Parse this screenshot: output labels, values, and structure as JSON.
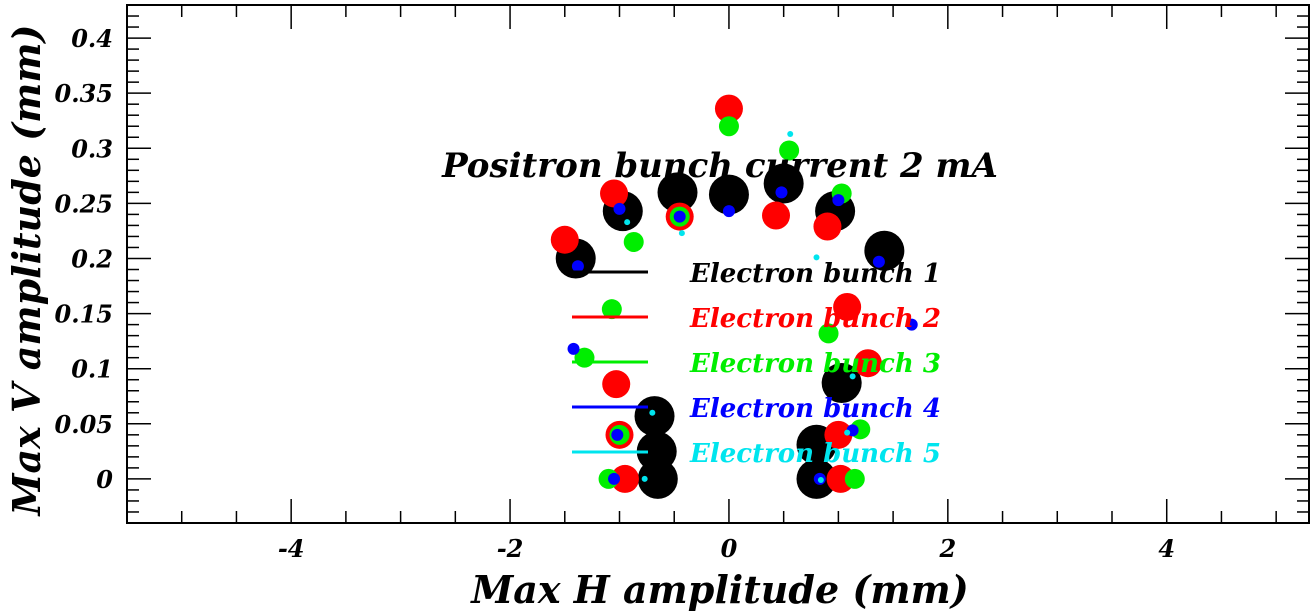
{
  "chart_data": {
    "type": "scatter",
    "title": "",
    "annotation": "Positron bunch current  2 mA",
    "xlabel": "Max H amplitude (mm)",
    "ylabel": "Max V amplitude (mm)",
    "xlim": [
      -5.5,
      5.3
    ],
    "ylim": [
      -0.04,
      0.43
    ],
    "x_ticks": [
      -4,
      -2,
      0,
      2,
      4
    ],
    "x_tick_labels": [
      "-4",
      "-2",
      "0",
      "2",
      "4"
    ],
    "y_ticks": [
      0,
      0.05,
      0.1,
      0.15,
      0.2,
      0.25,
      0.3,
      0.35,
      0.4
    ],
    "y_tick_labels": [
      "0",
      "0.05",
      "0.1",
      "0.15",
      "0.2",
      "0.25",
      "0.3",
      "0.35",
      "0.4"
    ],
    "grid": false,
    "legend_placement": "center",
    "series": [
      {
        "name": "Electron bunch 1",
        "color": "#000000",
        "points": [
          {
            "x": -1.4,
            "y": 0.2
          },
          {
            "x": -0.97,
            "y": 0.243
          },
          {
            "x": -0.47,
            "y": 0.26
          },
          {
            "x": 0.0,
            "y": 0.258
          },
          {
            "x": 0.5,
            "y": 0.268
          },
          {
            "x": 0.97,
            "y": 0.243
          },
          {
            "x": 1.42,
            "y": 0.207
          },
          {
            "x": 1.03,
            "y": 0.087
          },
          {
            "x": -0.68,
            "y": 0.057
          },
          {
            "x": -0.66,
            "y": 0.025
          },
          {
            "x": 0.8,
            "y": 0.031
          },
          {
            "x": -0.65,
            "y": 0.0
          },
          {
            "x": 0.8,
            "y": 0.0
          }
        ]
      },
      {
        "name": "Electron bunch 2",
        "color": "#ff0000",
        "points": [
          {
            "x": 0.0,
            "y": 0.336
          },
          {
            "x": -1.05,
            "y": 0.259
          },
          {
            "x": -1.5,
            "y": 0.217
          },
          {
            "x": -0.45,
            "y": 0.238
          },
          {
            "x": 0.43,
            "y": 0.239
          },
          {
            "x": 0.9,
            "y": 0.229
          },
          {
            "x": 1.08,
            "y": 0.156
          },
          {
            "x": 1.27,
            "y": 0.105
          },
          {
            "x": -1.03,
            "y": 0.086
          },
          {
            "x": -1.0,
            "y": 0.04
          },
          {
            "x": 1.0,
            "y": 0.04
          },
          {
            "x": -0.95,
            "y": 0.0
          },
          {
            "x": 1.02,
            "y": 0.0
          }
        ]
      },
      {
        "name": "Electron bunch 3",
        "color": "#00ee00",
        "points": [
          {
            "x": 0.0,
            "y": 0.32
          },
          {
            "x": 0.55,
            "y": 0.298
          },
          {
            "x": 1.03,
            "y": 0.259
          },
          {
            "x": -0.45,
            "y": 0.238
          },
          {
            "x": -0.87,
            "y": 0.215
          },
          {
            "x": -1.07,
            "y": 0.154
          },
          {
            "x": 0.91,
            "y": 0.132
          },
          {
            "x": -1.32,
            "y": 0.11
          },
          {
            "x": 1.2,
            "y": 0.045
          },
          {
            "x": -1.0,
            "y": 0.04
          },
          {
            "x": -1.1,
            "y": 0.0
          },
          {
            "x": 1.15,
            "y": 0.0
          }
        ]
      },
      {
        "name": "Electron bunch 4",
        "color": "#0000ff",
        "points": [
          {
            "x": 0.0,
            "y": 0.243
          },
          {
            "x": 0.48,
            "y": 0.26
          },
          {
            "x": -1.0,
            "y": 0.245
          },
          {
            "x": -0.45,
            "y": 0.238
          },
          {
            "x": 1.0,
            "y": 0.253
          },
          {
            "x": -1.38,
            "y": 0.193
          },
          {
            "x": 1.37,
            "y": 0.197
          },
          {
            "x": 1.67,
            "y": 0.14
          },
          {
            "x": -1.42,
            "y": 0.118
          },
          {
            "x": -1.02,
            "y": 0.04
          },
          {
            "x": 1.13,
            "y": 0.044
          },
          {
            "x": -1.05,
            "y": 0.0
          },
          {
            "x": 0.83,
            "y": 0.0
          }
        ]
      },
      {
        "name": "Electron bunch 5",
        "color": "#00e5ee",
        "points": [
          {
            "x": 0.56,
            "y": 0.313
          },
          {
            "x": -0.93,
            "y": 0.233
          },
          {
            "x": -0.43,
            "y": 0.223
          },
          {
            "x": 0.8,
            "y": 0.201
          },
          {
            "x": 1.13,
            "y": 0.093
          },
          {
            "x": -0.7,
            "y": 0.06
          },
          {
            "x": 1.08,
            "y": 0.042
          },
          {
            "x": -0.77,
            "y": 0.0
          },
          {
            "x": 0.84,
            "y": -0.001
          }
        ]
      }
    ]
  }
}
